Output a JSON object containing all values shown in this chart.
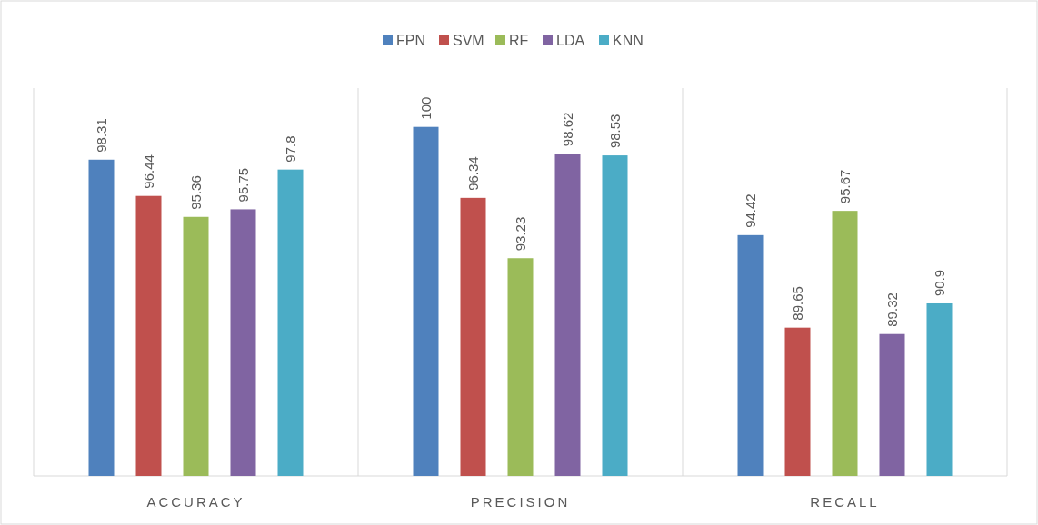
{
  "chart_data": {
    "type": "bar",
    "categories": [
      "ACCURACY",
      "PRECISION",
      "RECALL"
    ],
    "series": [
      {
        "name": "FPN",
        "color": "#4f81bd",
        "values": [
          98.31,
          100,
          94.42
        ]
      },
      {
        "name": "SVM",
        "color": "#c0504d",
        "values": [
          96.44,
          96.34,
          89.65
        ]
      },
      {
        "name": "RF",
        "color": "#9bbb59",
        "values": [
          95.36,
          93.23,
          95.67
        ]
      },
      {
        "name": "LDA",
        "color": "#8064a2",
        "values": [
          95.75,
          98.62,
          89.32
        ]
      },
      {
        "name": "KNN",
        "color": "#4bacc6",
        "values": [
          97.8,
          98.53,
          90.9
        ]
      }
    ],
    "ylim": [
      82,
      102
    ],
    "data_labels": true,
    "legend": "top",
    "grid": false
  }
}
